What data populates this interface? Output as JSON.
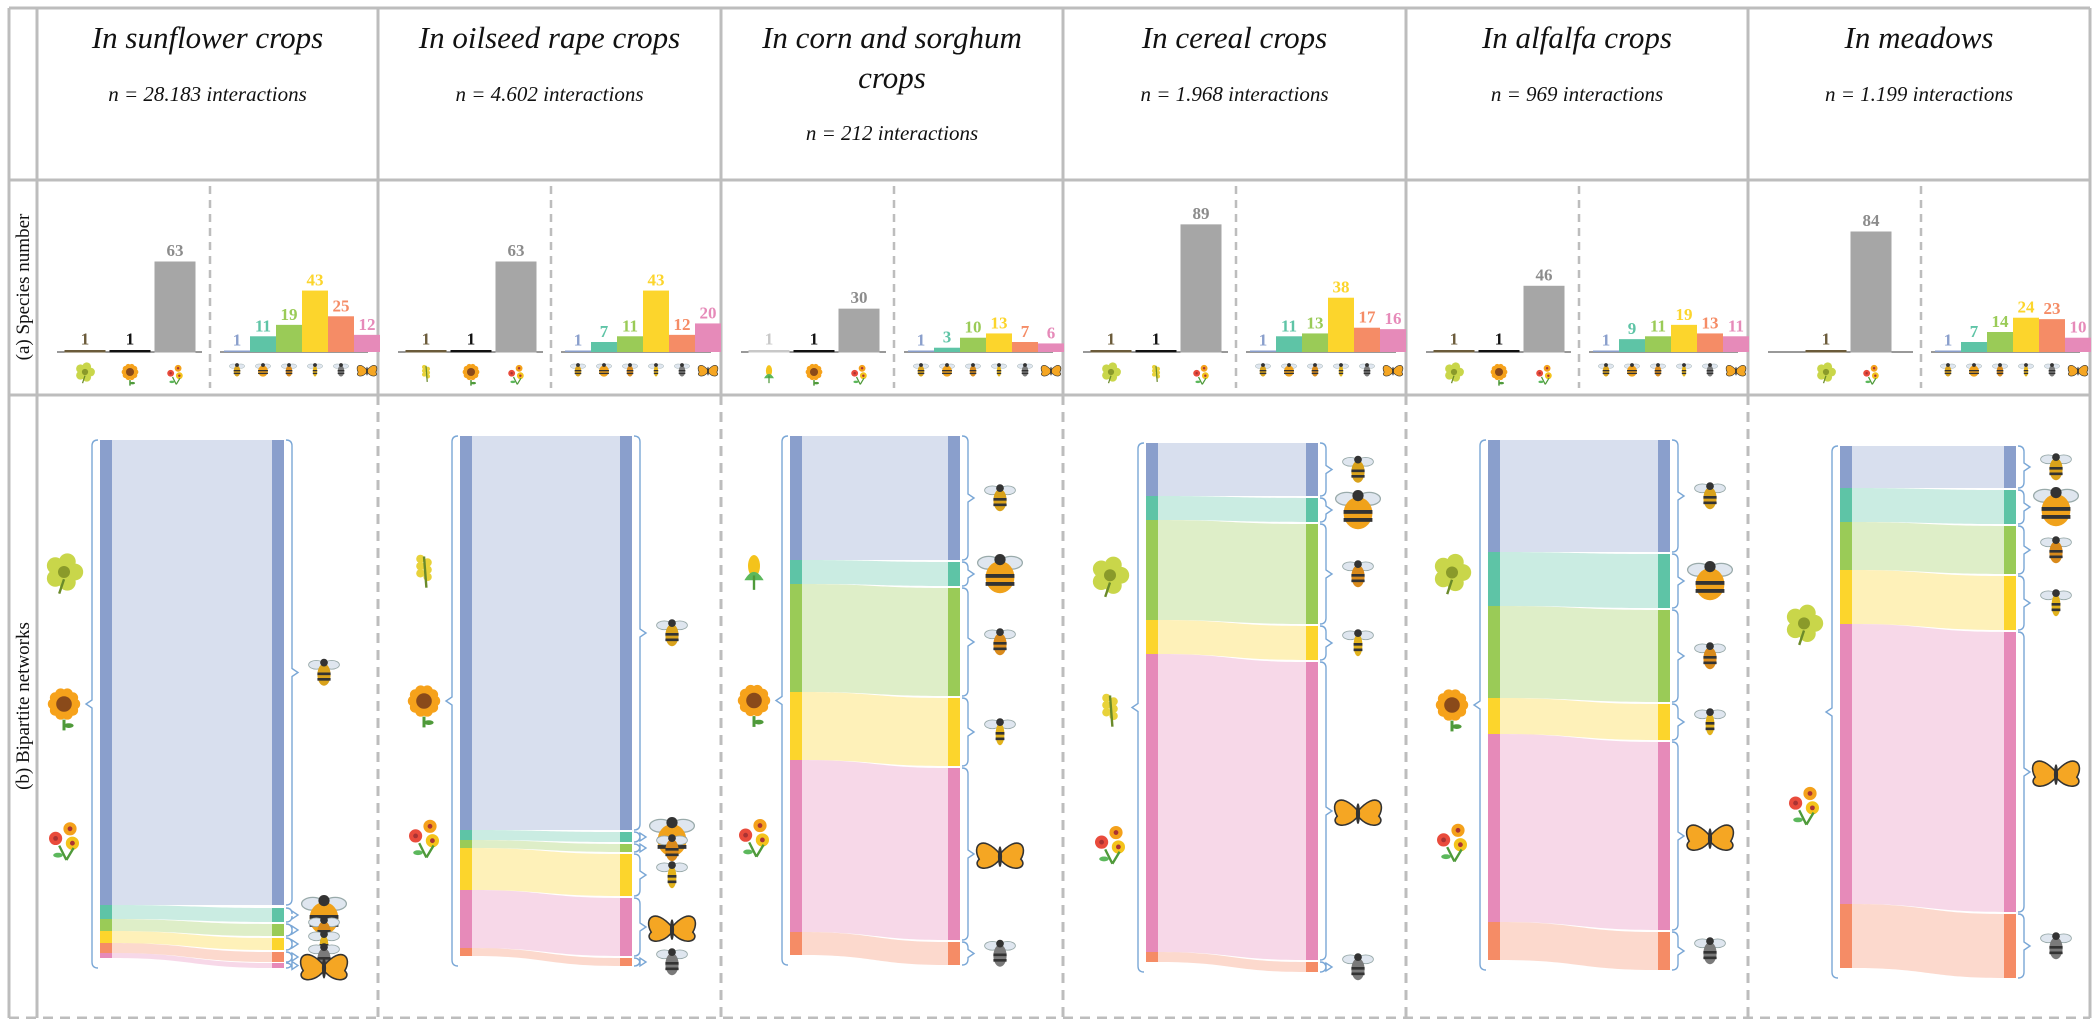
{
  "row_labels": {
    "species": "(a) Species number",
    "networks": "(b) Bipartite networks"
  },
  "colors": {
    "plant_gray": "#a6a6a6",
    "groups": [
      "#8a9fcc",
      "#5ec4a6",
      "#9acb57",
      "#fcd52c",
      "#f58c66",
      "#e68ab9"
    ],
    "group_names": [
      "honeybee",
      "bumblebee",
      "small-bee",
      "wasp-like",
      "fly",
      "butterfly"
    ]
  },
  "panels": [
    {
      "id": "sunflower",
      "title_lines": [
        "In sunflower crops"
      ],
      "n_label": "n = 28.183 interactions",
      "chart_data": {
        "type": "bar",
        "plants": {
          "labels": [
            "1",
            "1",
            "63"
          ],
          "values": [
            1,
            1,
            63
          ],
          "label_colors": [
            "#6b5b3a",
            "#111111",
            "#8c8c8c"
          ],
          "icons": [
            "crop-flower-icon",
            "sunflower-icon",
            "wildflower-icon"
          ]
        },
        "pollinators": {
          "labels": [
            "1",
            "11",
            "19",
            "43",
            "25",
            "12"
          ],
          "values": [
            1,
            11,
            19,
            43,
            25,
            12
          ],
          "icons": [
            "honeybee-icon",
            "bumblebee-icon",
            "small-bee-icon",
            "wasp-icon",
            "fly-icon",
            "butterfly-icon"
          ]
        }
      }
    },
    {
      "id": "oilseed-rape",
      "title_lines": [
        "In oilseed rape crops"
      ],
      "n_label": "n = 4.602 interactions",
      "chart_data": {
        "type": "bar",
        "plants": {
          "labels": [
            "1",
            "1",
            "63"
          ],
          "values": [
            1,
            1,
            63
          ],
          "label_colors": [
            "#6b5b3a",
            "#111111",
            "#8c8c8c"
          ],
          "icons": [
            "rapeseed-icon",
            "sunflower-icon",
            "wildflower-icon"
          ]
        },
        "pollinators": {
          "labels": [
            "1",
            "7",
            "11",
            "43",
            "12",
            "20"
          ],
          "values": [
            1,
            7,
            11,
            43,
            12,
            20
          ],
          "icons": [
            "honeybee-icon",
            "bumblebee-icon",
            "small-bee-icon",
            "wasp-icon",
            "fly-icon",
            "butterfly-icon"
          ]
        }
      }
    },
    {
      "id": "corn-sorghum",
      "title_lines": [
        "In corn and sorghum",
        "crops"
      ],
      "n_label": "n = 212 interactions",
      "chart_data": {
        "type": "bar",
        "plants": {
          "labels": [
            "1",
            "1",
            "30"
          ],
          "values": [
            1,
            1,
            30
          ],
          "label_colors": [
            "#c8c8c8",
            "#111111",
            "#8c8c8c"
          ],
          "icons": [
            "corn-icon",
            "sunflower-icon",
            "wildflower-icon"
          ]
        },
        "pollinators": {
          "labels": [
            "1",
            "3",
            "10",
            "13",
            "7",
            "6"
          ],
          "values": [
            1,
            3,
            10,
            13,
            7,
            6
          ],
          "icons": [
            "honeybee-icon",
            "bumblebee-icon",
            "small-bee-icon",
            "wasp-icon",
            "fly-icon",
            "butterfly-icon"
          ]
        }
      }
    },
    {
      "id": "cereal",
      "title_lines": [
        "In cereal crops"
      ],
      "n_label": "n = 1.968 interactions",
      "chart_data": {
        "type": "bar",
        "plants": {
          "labels": [
            "1",
            "1",
            "89"
          ],
          "values": [
            1,
            1,
            89
          ],
          "label_colors": [
            "#6b5b3a",
            "#111111",
            "#8c8c8c"
          ],
          "icons": [
            "crop-flower-icon",
            "rapeseed-icon",
            "wildflower-icon"
          ]
        },
        "pollinators": {
          "labels": [
            "1",
            "11",
            "13",
            "38",
            "17",
            "16"
          ],
          "values": [
            1,
            11,
            13,
            38,
            17,
            16
          ],
          "icons": [
            "honeybee-icon",
            "bumblebee-icon",
            "small-bee-icon",
            "wasp-icon",
            "fly-icon",
            "butterfly-icon"
          ]
        }
      }
    },
    {
      "id": "alfalfa",
      "title_lines": [
        "In alfalfa crops"
      ],
      "n_label": "n = 969 interactions",
      "chart_data": {
        "type": "bar",
        "plants": {
          "labels": [
            "1",
            "1",
            "46"
          ],
          "values": [
            1,
            1,
            46
          ],
          "label_colors": [
            "#6b5b3a",
            "#111111",
            "#8c8c8c"
          ],
          "icons": [
            "crop-flower-icon",
            "sunflower-icon",
            "wildflower-icon"
          ]
        },
        "pollinators": {
          "labels": [
            "1",
            "9",
            "11",
            "19",
            "13",
            "11"
          ],
          "values": [
            1,
            9,
            11,
            19,
            13,
            11
          ],
          "icons": [
            "honeybee-icon",
            "bumblebee-icon",
            "small-bee-icon",
            "wasp-icon",
            "fly-icon",
            "butterfly-icon"
          ]
        }
      }
    },
    {
      "id": "meadows",
      "title_lines": [
        "In meadows"
      ],
      "n_label": "n = 1.199 interactions",
      "chart_data": {
        "type": "bar",
        "plants": {
          "labels": [
            "1",
            "84"
          ],
          "values": [
            1,
            84
          ],
          "label_colors": [
            "#6b5b3a",
            "#8c8c8c"
          ],
          "icons": [
            "crop-flower-icon",
            "wildflower-icon"
          ]
        },
        "pollinators": {
          "labels": [
            "1",
            "7",
            "14",
            "24",
            "23",
            "10"
          ],
          "values": [
            1,
            7,
            14,
            24,
            23,
            10
          ],
          "icons": [
            "honeybee-icon",
            "bumblebee-icon",
            "small-bee-icon",
            "wasp-icon",
            "fly-icon",
            "butterfly-icon"
          ]
        }
      }
    }
  ]
}
